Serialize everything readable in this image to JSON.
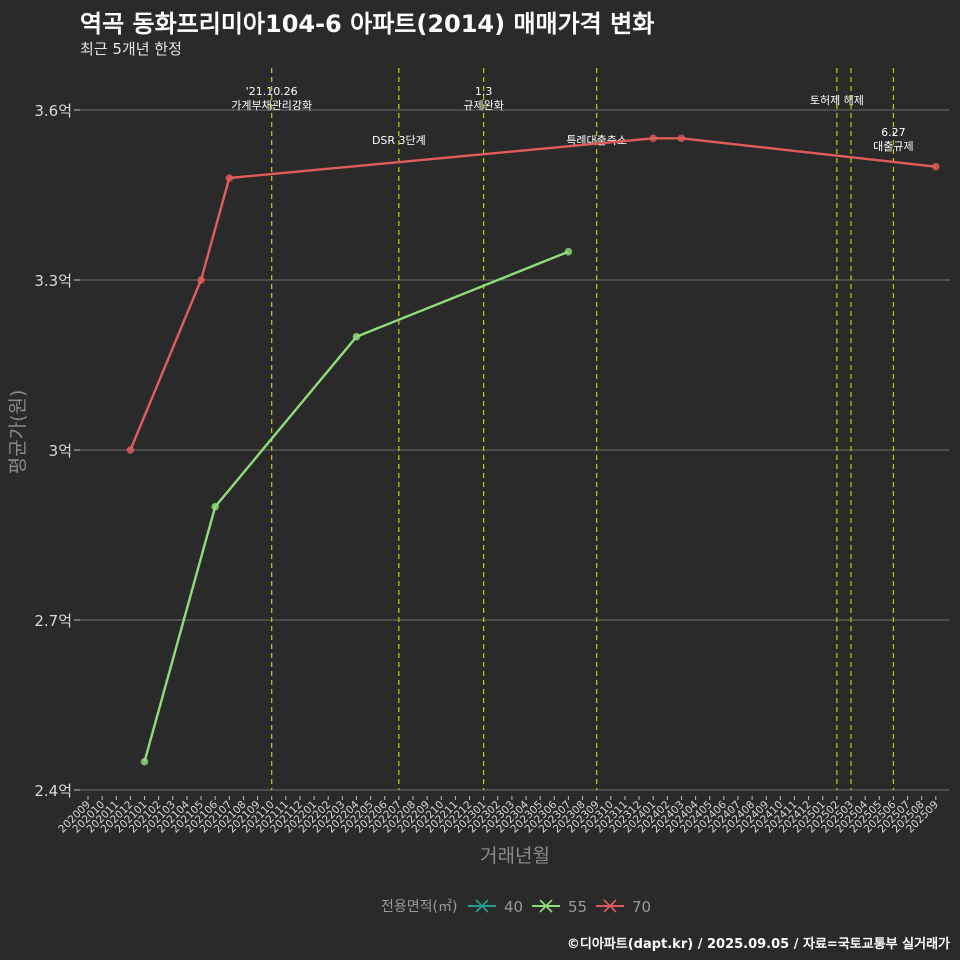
{
  "title": "역곡 동화프리미아104-6 아파트(2014) 매매가격 변화",
  "subtitle": "최근 5개년 한정",
  "caption": "©디아파트(dapt.kr) / 2025.09.05 / 자료=국토교통부 실거래가",
  "chart_data": {
    "type": "line",
    "title": "역곡 동화프리미아104-6 아파트(2014) 매매가격 변화",
    "subtitle": "최근 5개년 한정",
    "xlabel": "거래년월",
    "ylabel": "평균가(원)",
    "categories": [
      "202009",
      "202010",
      "202011",
      "202012",
      "202101",
      "202102",
      "202103",
      "202104",
      "202105",
      "202106",
      "202107",
      "202108",
      "202109",
      "202110",
      "202111",
      "202112",
      "202201",
      "202202",
      "202203",
      "202204",
      "202205",
      "202206",
      "202207",
      "202208",
      "202209",
      "202210",
      "202211",
      "202212",
      "202301",
      "202302",
      "202303",
      "202304",
      "202305",
      "202306",
      "202307",
      "202308",
      "202309",
      "202310",
      "202311",
      "202312",
      "202401",
      "202402",
      "202403",
      "202404",
      "202405",
      "202406",
      "202407",
      "202408",
      "202409",
      "202410",
      "202411",
      "202412",
      "202501",
      "202502",
      "202503",
      "202504",
      "202505",
      "202506",
      "202507",
      "202508",
      "202509"
    ],
    "ylim": [
      2.4,
      3.68
    ],
    "yticks": [
      2.4,
      2.7,
      3.0,
      3.3,
      3.6
    ],
    "ytick_labels": [
      "2.4억",
      "2.7억",
      "3억",
      "3.3억",
      "3.6억"
    ],
    "grid": true,
    "legend_title": "전용면적(㎡)",
    "legend_position": "bottom",
    "series": [
      {
        "name": "40",
        "color": "#2a9d8f",
        "points": []
      },
      {
        "name": "55",
        "color": "#8fdc7a",
        "points": [
          {
            "x": "202101",
            "y": 2.45
          },
          {
            "x": "202106",
            "y": 2.9
          },
          {
            "x": "202204",
            "y": 3.2
          },
          {
            "x": "202307",
            "y": 3.35
          }
        ]
      },
      {
        "name": "70",
        "color": "#e05c5c",
        "points": [
          {
            "x": "202012",
            "y": 3.0
          },
          {
            "x": "202105",
            "y": 3.3
          },
          {
            "x": "202107",
            "y": 3.48
          },
          {
            "x": "202401",
            "y": 3.55
          },
          {
            "x": "202403",
            "y": 3.55
          },
          {
            "x": "202509",
            "y": 3.5
          }
        ]
      }
    ],
    "events": [
      {
        "x": "202110",
        "label": "'21.10.26\n가계부채관리강화",
        "level": 1
      },
      {
        "x": "202207",
        "label": "DSR 3단계",
        "level": 2
      },
      {
        "x": "202301",
        "label": "1.3\n규제완화",
        "level": 1
      },
      {
        "x": "202309",
        "label": "특례대출축소",
        "level": 2
      },
      {
        "x": "202502",
        "label": "토허제 해제",
        "level": 0
      },
      {
        "x": "202503",
        "label": "",
        "level": 0
      },
      {
        "x": "202506",
        "label": "6.27\n대출규제",
        "level": 3
      }
    ],
    "event_color": "#c8c800"
  }
}
